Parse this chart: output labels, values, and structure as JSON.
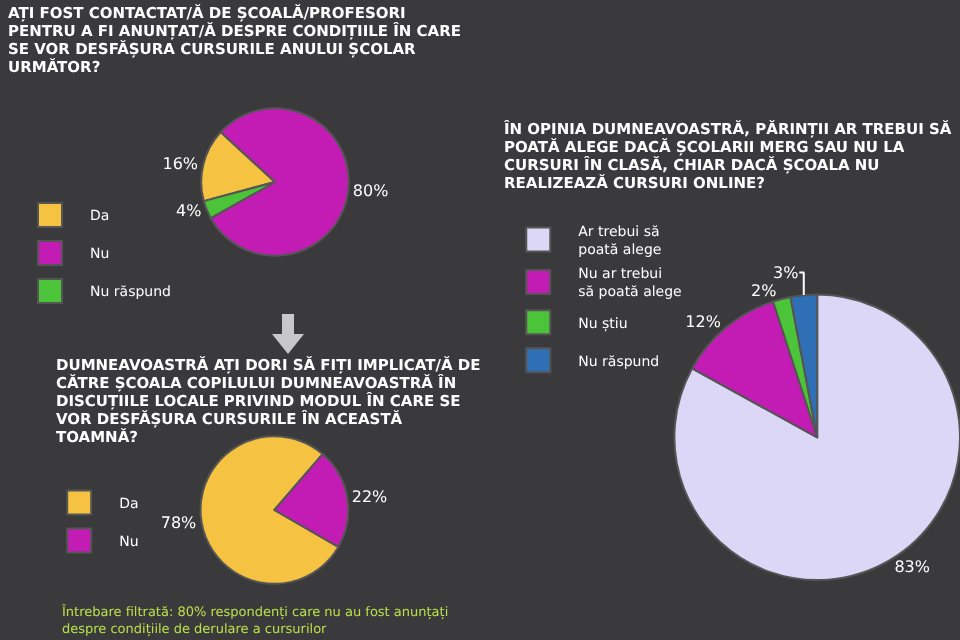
{
  "chart_data": [
    {
      "type": "pie",
      "title": "AȚI FOST CONTACTAT/Ă DE ȘCOALĂ/PROFESORI PENTRU A FI ANUNȚAT/Ă DESPRE CONDIȚIILE ÎN CARE SE VOR DESFĂȘURA CURSURILE ANULUI ȘCOLAR URMĂTOR?",
      "categories": [
        "Da",
        "Nu",
        "Nu răspund"
      ],
      "values": [
        16,
        80,
        4
      ],
      "value_labels": [
        "16%",
        "80%",
        "4%"
      ],
      "colors": [
        "#f5c242",
        "#c21cb4",
        "#4cc43a"
      ],
      "legend": "bottom left"
    },
    {
      "type": "pie",
      "title": "DUMNEAVOASTRĂ AȚI DORI SĂ FIȚI IMPLICAT/Ă DE CĂTRE ȘCOALA COPILULUI DUMNEAVOASTRĂ ÎN DISCUȚIILE LOCALE PRIVIND MODUL ÎN CARE SE VOR DESFĂȘURA CURSURILE ÎN ACEASTĂ TOAMNĂ?",
      "categories": [
        "Da",
        "Nu"
      ],
      "values": [
        78,
        22
      ],
      "value_labels": [
        "78%",
        "22%"
      ],
      "colors": [
        "#f5c242",
        "#c21cb4"
      ],
      "legend": "left",
      "annotations": [
        "Întrebare filtrată: 80% respondenți care nu au fost anunțați despre condițiile de derulare a cursurilor"
      ]
    },
    {
      "type": "pie",
      "title": "ÎN OPINIA DUMNEAVOASTRĂ, PĂRINȚII AR TREBUI SĂ POATĂ ALEGE DACĂ ȘCOLARII MERG SAU NU LA CURSURI ÎN CLASĂ, CHIAR DACĂ ȘCOALA NU REALIZEAZĂ CURSURI ONLINE?",
      "categories": [
        "Ar trebui să poată alege",
        "Nu ar trebui să poată alege",
        "Nu știu",
        "Nu răspund"
      ],
      "values": [
        83,
        12,
        2,
        3
      ],
      "value_labels": [
        "83%",
        "12%",
        "2%",
        "3%"
      ],
      "colors": [
        "#dcd6f7",
        "#c21cb4",
        "#4cc43a",
        "#2f6fb5"
      ],
      "legend": "left"
    }
  ]
}
